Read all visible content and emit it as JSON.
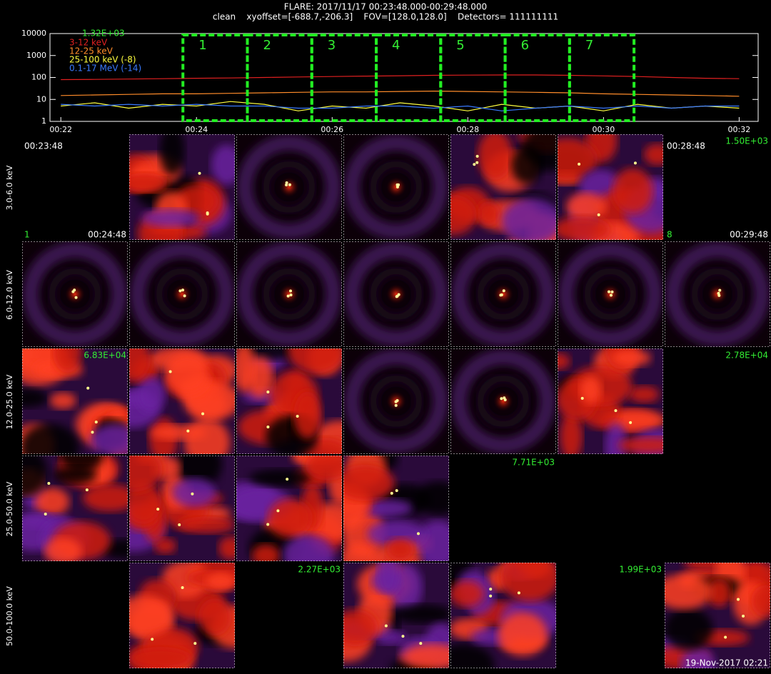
{
  "chart_data": {
    "type": "line",
    "title": "FLARE: 2017/11/17 00:23:48.000-00:29:48.000",
    "subtitle": "clean    xyoffset=[-688.7,-206.3]    FOV=[128.0,128.0]    Detectors= 111111111",
    "annotation": "1.32E+03",
    "x": [
      22,
      22.5,
      23,
      23.5,
      24,
      24.5,
      25,
      25.5,
      26,
      26.5,
      27,
      27.5,
      28,
      28.5,
      29,
      29.5,
      30,
      30.5,
      31,
      31.5,
      32
    ],
    "xlim": [
      21.84,
      32.28
    ],
    "xticks": [
      {
        "value": 22,
        "label": "00:22"
      },
      {
        "value": 24,
        "label": "00:24"
      },
      {
        "value": 26,
        "label": "00:26"
      },
      {
        "value": 28,
        "label": "00:28"
      },
      {
        "value": 30,
        "label": "00:30"
      },
      {
        "value": 32,
        "label": "00:32"
      }
    ],
    "ylim": [
      1,
      10000
    ],
    "yticks": [
      1,
      10,
      100,
      1000,
      10000
    ],
    "log_y": true,
    "series": [
      {
        "name": "3-12 keV",
        "color": "#e02020",
        "values": [
          80,
          82,
          85,
          88,
          92,
          95,
          100,
          105,
          110,
          115,
          120,
          125,
          128,
          130,
          130,
          125,
          118,
          110,
          100,
          92,
          88
        ]
      },
      {
        "name": "12-25 keV",
        "color": "#ff8c2a",
        "values": [
          15,
          16,
          17,
          18,
          18,
          19,
          20,
          21,
          22,
          22,
          23,
          24,
          23,
          22,
          21,
          20,
          18,
          17,
          16,
          15,
          14
        ]
      },
      {
        "name": "25-100 keV (-8)",
        "color": "#ffff40",
        "values": [
          5,
          7,
          4,
          6,
          5,
          8,
          6,
          3,
          5,
          4,
          7,
          5,
          3,
          6,
          4,
          5,
          3,
          6,
          4,
          5,
          4
        ]
      },
      {
        "name": "0.1-17 MeV (-14)",
        "color": "#3a7aff",
        "values": [
          6,
          5,
          6,
          5,
          6,
          5,
          5,
          4,
          4,
          5,
          5,
          4,
          5,
          3,
          4,
          5,
          4,
          5,
          4,
          5,
          5
        ]
      }
    ],
    "intervals": [
      {
        "label": "1",
        "start": 23.8,
        "end": 24.75
      },
      {
        "label": "2",
        "start": 24.75,
        "end": 25.7
      },
      {
        "label": "3",
        "start": 25.7,
        "end": 26.65
      },
      {
        "label": "4",
        "start": 26.65,
        "end": 27.6
      },
      {
        "label": "5",
        "start": 27.6,
        "end": 28.55
      },
      {
        "label": "6",
        "start": 28.55,
        "end": 29.5
      },
      {
        "label": "7",
        "start": 29.5,
        "end": 30.45
      }
    ]
  },
  "image_grid": {
    "rows": [
      {
        "label": "3.0-6.0 keV",
        "panels": [
          false,
          true,
          true,
          true,
          true,
          true,
          false
        ]
      },
      {
        "label": "6.0-12.0 keV",
        "panels": [
          true,
          true,
          true,
          true,
          true,
          true,
          true
        ]
      },
      {
        "label": "12.0-25.0 keV",
        "panels": [
          true,
          true,
          true,
          true,
          true,
          true,
          false
        ]
      },
      {
        "label": "25.0-50.0 keV",
        "panels": [
          true,
          true,
          true,
          true,
          false,
          false,
          false
        ]
      },
      {
        "label": "50.0-100.0 keV",
        "panels": [
          false,
          true,
          false,
          true,
          true,
          false,
          true
        ]
      }
    ],
    "annotations": [
      {
        "text": "00:23:48",
        "row": 0,
        "col": 0,
        "corner": "top-left",
        "color": "#ffffff"
      },
      {
        "text": "1",
        "row": 0,
        "col": 0,
        "corner": "bottom-left",
        "color": "#33ee33"
      },
      {
        "text": "00:24:48",
        "row": 0,
        "col": 0,
        "corner": "bottom-right",
        "color": "#ffffff"
      },
      {
        "text": "00:28:48",
        "row": 0,
        "col": 6,
        "corner": "top-left",
        "color": "#ffffff"
      },
      {
        "text": "1.50E+03",
        "row": 0,
        "col": 6,
        "corner": "top-right",
        "color": "#33ee33"
      },
      {
        "text": "8",
        "row": 0,
        "col": 6,
        "corner": "bottom-left",
        "color": "#33ee33"
      },
      {
        "text": "00:29:48",
        "row": 0,
        "col": 6,
        "corner": "bottom-right",
        "color": "#ffffff"
      },
      {
        "text": "6.83E+04",
        "row": 2,
        "col": 0,
        "corner": "top-right",
        "color": "#33ee33"
      },
      {
        "text": "2.78E+04",
        "row": 2,
        "col": 6,
        "corner": "top-right",
        "color": "#33ee33"
      },
      {
        "text": "7.71E+03",
        "row": 3,
        "col": 4,
        "corner": "top-right",
        "color": "#33ee33"
      },
      {
        "text": "2.27E+03",
        "row": 4,
        "col": 2,
        "corner": "top-right",
        "color": "#33ee33"
      },
      {
        "text": "1.99E+03",
        "row": 4,
        "col": 5,
        "corner": "top-right",
        "color": "#33ee33"
      }
    ],
    "footer": "19-Nov-2017 02:21"
  }
}
